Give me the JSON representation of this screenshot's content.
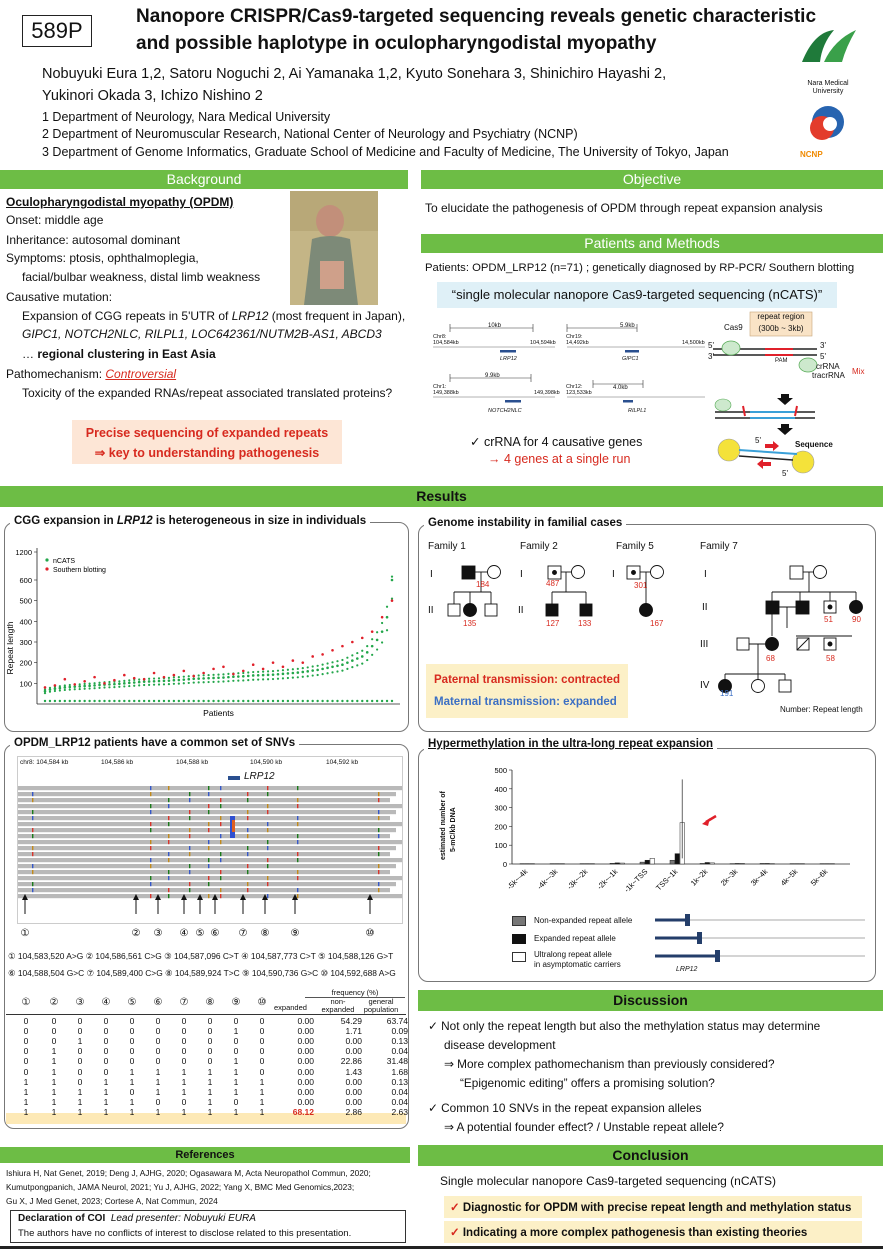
{
  "header": {
    "id": "589P",
    "title_line1": "Nanopore CRISPR/Cas9-targeted sequencing reveals genetic characteristic",
    "title_line2": "and possible haplotype in oculopharyngodistal myopathy",
    "authors_line1": "Nobuyuki Eura 1,2, Satoru Noguchi 2, Ai Yamanaka 1,2, Kyuto Sonehara 3, Shinichiro Hayashi 2,",
    "authors_line2": "Yukinori Okada 3, Ichizo Nishino 2",
    "aff1": "1 Department of Neurology, Nara Medical University",
    "aff2": "2 Department of Neuromuscular Research, National Center of Neurology and Psychiatry (NCNP)",
    "aff3": "3 Department of Genome Informatics, Graduate School of Medicine and Faculty of Medicine, The University of Tokyo, Japan",
    "logo1": "Nara Medical University",
    "logo2": "NCNP"
  },
  "background": {
    "heading": "Background",
    "title": "Oculopharyngodistal myopathy (OPDM)",
    "onset": "Onset: middle age",
    "inheritance": "Inheritance: autosomal dominant",
    "symptoms1": "Symptoms: ptosis, ophthalmoplegia,",
    "symptoms2": "facial/bulbar weakness,  distal limb weakness",
    "causative": "Causative mutation:",
    "exp1a": "Expansion of CGG repeats in 5'UTR of ",
    "exp1b": "LRP12",
    "exp1c": " (most frequent in Japan),",
    "genes": "GIPC1, NOTCH2NLC, RILPL1, LOC642361/NUTM2B-AS1, ABCD3",
    "cluster_pre": "… ",
    "cluster": "regional clustering in East Asia",
    "patho_pre": "Pathomechanism: ",
    "patho": "Controversial",
    "toxicity": "Toxicity of the expanded RNAs/repeat associated translated proteins?",
    "box1": "Precise sequencing of expanded repeats",
    "box2": "⇒ key to understanding pathogenesis"
  },
  "objective": {
    "heading": "Objective",
    "text": "To elucidate the pathogenesis of OPDM through repeat expansion analysis"
  },
  "methods": {
    "heading": "Patients and Methods",
    "patients": "Patients: OPDM_LRP12 (n=71) ; genetically diagnosed by RP-PCR/ Southern blotting",
    "ncats": "“single molecular nanopore Cas9-targeted sequencing (nCATS)”",
    "check1": "✓ crRNA for 4 causative genes",
    "check2": "→  4 genes at a single run",
    "loci": [
      {
        "size": "10kb",
        "chr": "Chr8:",
        "start": "104,584kb",
        "end": "104,594kb",
        "gene": "LRP12"
      },
      {
        "size": "5.9kb",
        "chr": "Chr19:",
        "start": "14,492kb",
        "end": "14,500kb",
        "gene": "GIPC1"
      },
      {
        "size": "9.9kb",
        "chr": "Chr1:",
        "start": "149,388kb",
        "end": "149,398kb",
        "gene": "NOTCH2NLC"
      },
      {
        "size": "4.0kb",
        "chr": "Chr12:",
        "start": "123,533kb",
        "end": "",
        "gene": "RILPL1"
      }
    ],
    "diag": {
      "repeat_region": "repeat region",
      "repeat_size": "(300b ~ 3kb)",
      "cas9": "Cas9",
      "pam": "PAM",
      "crrna": "crRNA",
      "tracrrna": "tracrRNA",
      "mix": "Mix",
      "sequence": "Sequence",
      "p5": "5'",
      "p3": "3'"
    }
  },
  "results": {
    "heading": "Results"
  },
  "cgg": {
    "caption_pre": "CGG expansion in ",
    "caption_gene": "LRP12",
    "caption_post": " is heterogeneous in size in individuals",
    "legend_ncats": "nCATS",
    "legend_sb": "Southern blotting",
    "colors": {
      "ncats": "#22a64a",
      "sb": "#e0202a"
    }
  },
  "chart_data": {
    "type": "scatter",
    "xlabel": "Patients",
    "ylabel": "Repeat length",
    "yticks": [
      100,
      200,
      300,
      400,
      500,
      600,
      1200
    ],
    "ylim": [
      0,
      1200
    ],
    "series": [
      {
        "name": "nCATS",
        "values": [
          62,
          70,
          74,
          77,
          80,
          82,
          84,
          85,
          87,
          88,
          90,
          92,
          94,
          95,
          96,
          98,
          100,
          102,
          104,
          106,
          108,
          109,
          110,
          111,
          112,
          113,
          115,
          116,
          118,
          120,
          122,
          123,
          124,
          125,
          126,
          127,
          128,
          130,
          132,
          133,
          134,
          136,
          138,
          139,
          140,
          141,
          142,
          144,
          146,
          148,
          150,
          152,
          155,
          158,
          162,
          165,
          170,
          175,
          180,
          185,
          190,
          200,
          210,
          220,
          230,
          250,
          280,
          310,
          350,
          420,
          600
        ]
      },
      {
        "name": "Southern blotting",
        "values": [
          80,
          90,
          120,
          95,
          110,
          130,
          100,
          115,
          140,
          125,
          120,
          150,
          130,
          140,
          160,
          135,
          150,
          170,
          180,
          145,
          160,
          190,
          170,
          200,
          180,
          210,
          200,
          230,
          240,
          260,
          280,
          300,
          320,
          350,
          420,
          500
        ]
      }
    ]
  },
  "snv": {
    "caption": "OPDM_LRP12 patients have a common set of SNVs",
    "coords": [
      "chr8: 104,584 kb",
      "104,586 kb",
      "104,588 kb",
      "104,590 kb",
      "104,592 kb"
    ],
    "gene": "LRP12",
    "markers": [
      "①",
      "②",
      "③",
      "④",
      "⑤",
      "⑥",
      "⑦",
      "⑧",
      "⑨",
      "⑩"
    ],
    "list1": "① 104,583,520 A>G ② 104,586,561 C>G ③ 104,587,096 C>T ④ 104,587,773 C>T ⑤ 104,588,126 G>T",
    "list2": "⑥ 104,588,504 G>C ⑦ 104,589,400 C>G ⑧ 104,589,924 T>C ⑨ 104,590,736 G>C ⑩ 104,592,688 A>G",
    "freq_header": "frequency (%)",
    "col_expanded": "expanded",
    "col_nonexp": "non-expanded",
    "col_general": "general population",
    "rows": [
      {
        "g": [
          "0",
          "0",
          "0",
          "0",
          "0",
          "0",
          "0",
          "0",
          "0",
          "0"
        ],
        "f": [
          "0.00",
          "54.29",
          "63.74"
        ]
      },
      {
        "g": [
          "0",
          "0",
          "0",
          "0",
          "0",
          "0",
          "0",
          "0",
          "1",
          "0"
        ],
        "f": [
          "0.00",
          "1.71",
          "0.09"
        ]
      },
      {
        "g": [
          "0",
          "0",
          "1",
          "0",
          "0",
          "0",
          "0",
          "0",
          "0",
          "0"
        ],
        "f": [
          "0.00",
          "0.00",
          "0.13"
        ]
      },
      {
        "g": [
          "0",
          "1",
          "0",
          "0",
          "0",
          "0",
          "0",
          "0",
          "0",
          "0"
        ],
        "f": [
          "0.00",
          "0.00",
          "0.04"
        ]
      },
      {
        "g": [
          "0",
          "1",
          "0",
          "0",
          "0",
          "0",
          "0",
          "0",
          "1",
          "0"
        ],
        "f": [
          "0.00",
          "22.86",
          "31.48"
        ]
      },
      {
        "g": [
          "0",
          "1",
          "0",
          "0",
          "1",
          "1",
          "1",
          "1",
          "1",
          "0"
        ],
        "f": [
          "0.00",
          "1.43",
          "1.68"
        ]
      },
      {
        "g": [
          "1",
          "1",
          "0",
          "1",
          "1",
          "1",
          "1",
          "1",
          "1",
          "1"
        ],
        "f": [
          "0.00",
          "0.00",
          "0.13"
        ]
      },
      {
        "g": [
          "1",
          "1",
          "1",
          "1",
          "0",
          "1",
          "1",
          "1",
          "1",
          "1"
        ],
        "f": [
          "0.00",
          "0.00",
          "0.04"
        ]
      },
      {
        "g": [
          "1",
          "1",
          "1",
          "1",
          "1",
          "0",
          "0",
          "1",
          "0",
          "1"
        ],
        "f": [
          "0.00",
          "0.00",
          "0.04"
        ]
      },
      {
        "g": [
          "1",
          "1",
          "1",
          "1",
          "1",
          "1",
          "1",
          "1",
          "1",
          "1"
        ],
        "f": [
          "68.12",
          "2.86",
          "2.63"
        ]
      }
    ]
  },
  "genome": {
    "caption": "Genome instability in familial cases",
    "families": [
      "Family 1",
      "Family 2",
      "Family 5",
      "Family 7"
    ],
    "gens": [
      "I",
      "II",
      "III",
      "IV"
    ],
    "numbers": {
      "f1a": "184",
      "f1b": "135",
      "f2a": "487",
      "f2b": "127",
      "f2c": "133",
      "f5a": "301",
      "f5b": "167",
      "f7a": "51",
      "f7b": "90",
      "f7c": "68",
      "f7d": "58",
      "f7e": "191"
    },
    "paternal": "Paternal transmission: contracted",
    "maternal": "Maternal transmission: expanded",
    "number_note": "Number: Repeat length"
  },
  "methyl": {
    "caption": "Hypermethylation in the ultra-long repeat expansion",
    "ylabel1": "estimated number of",
    "ylabel2": "5-mC/kb DNA",
    "yticks": [
      "0",
      "100",
      "200",
      "300",
      "400",
      "500"
    ],
    "xlabels": [
      "-5k~-4k",
      "-4k~-3k",
      "-3k~-2k",
      "-2k~-1k",
      "-1k~TSS",
      "TSS~1k",
      "1k~2k",
      "2k~3k",
      "3k~4k",
      "4k~5k",
      "5k~6k"
    ],
    "legend": [
      "Non-expanded repeat allele",
      "Expanded repeat allele",
      "Ultralong repeat allele",
      "in asymptomatic carriers"
    ],
    "gene": "LRP12"
  },
  "methyl_data": {
    "type": "bar",
    "series": [
      {
        "name": "Non-expanded repeat allele",
        "values": [
          2,
          2,
          2,
          4,
          10,
          20,
          3,
          2,
          3,
          2,
          2
        ]
      },
      {
        "name": "Expanded repeat allele",
        "values": [
          2,
          2,
          2,
          6,
          20,
          55,
          8,
          3,
          3,
          2,
          2
        ]
      },
      {
        "name": "Ultralong repeat allele in asymptomatic carriers",
        "values": [
          2,
          2,
          2,
          5,
          30,
          220,
          6,
          3,
          2,
          2,
          2
        ]
      }
    ]
  },
  "discussion": {
    "heading": "Discussion",
    "p1a": "✓  Not only the repeat length but also the methylation status may determine",
    "p1b": "disease development",
    "p1c": "⇒ More complex pathomechanism than previously considered?",
    "p1d": "“Epigenomic editing” offers a promising solution?",
    "p2a": "✓  Common 10 SNVs in the repeat expansion alleles",
    "p2b": "⇒ A potential founder effect?  / Unstable repeat allele?"
  },
  "conclusion": {
    "heading": "Conclusion",
    "text": "Single molecular nanopore Cas9-targeted sequencing (nCATS)",
    "b1": "Diagnostic for OPDM with precise repeat length and methylation status",
    "b2": "Indicating a more complex pathogenesis than existing theories"
  },
  "references": {
    "heading": "References",
    "l1": "Ishiura H, Nat Genet, 2019; Deng J, AJHG, 2020; Ogasawara M, Acta Neuropathol Commun, 2020;",
    "l2": "Kumutpongpanich, JAMA Neurol, 2021; Yu J, AJHG, 2022; Yang X, BMC Med Genomics,2023;",
    "l3": "Gu X, J Med Genet, 2023; Cortese A, Nat Commun, 2024"
  },
  "coi": {
    "title": "Declaration of COI",
    "presenter": "Lead presenter: Nobuyuki EURA",
    "text": "The authors have no conflicts of interest to disclose related to this presentation."
  }
}
